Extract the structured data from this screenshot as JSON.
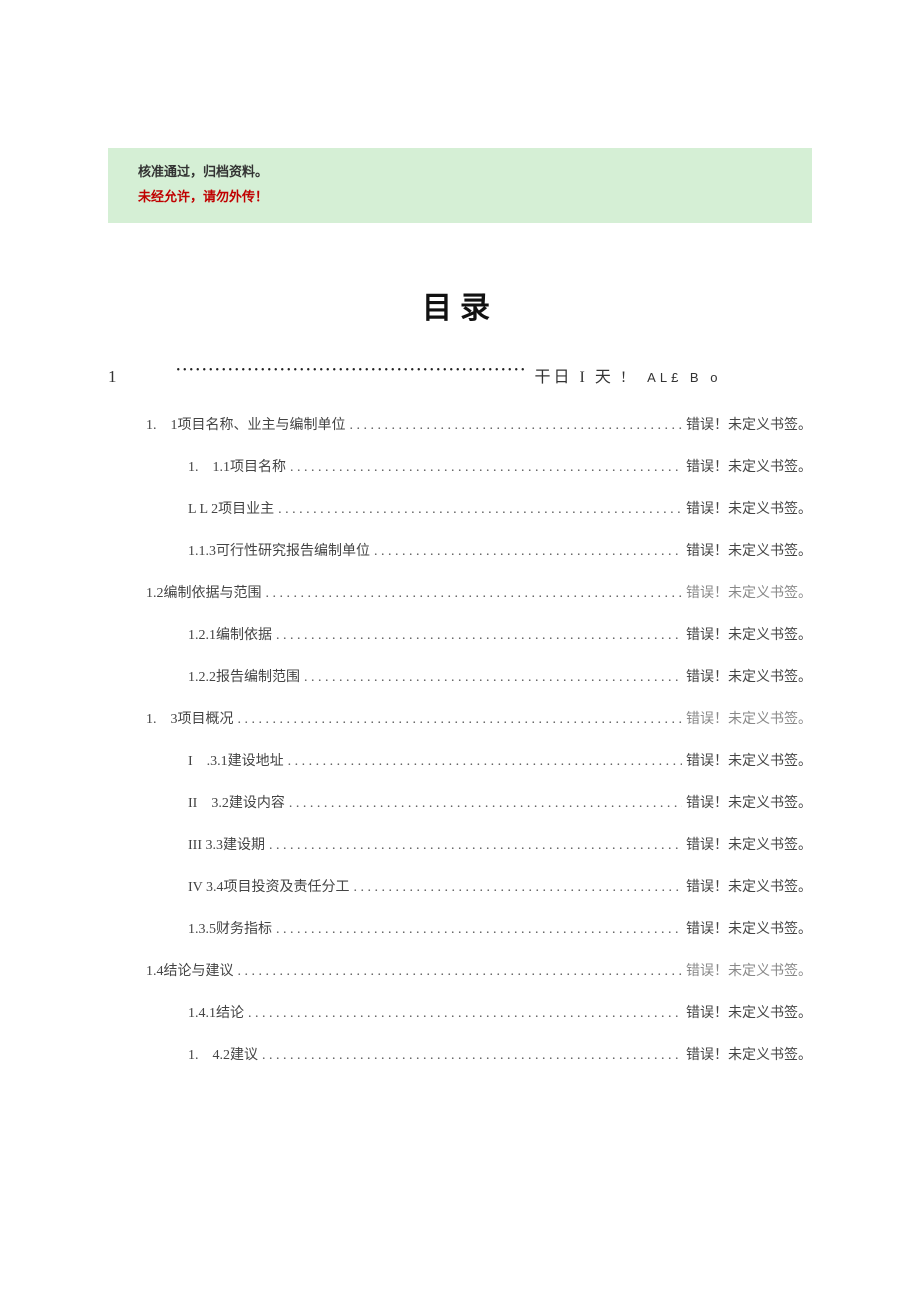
{
  "notice": {
    "line1": "核准通过，归档资料。",
    "line2": "未经允许，请勿外传！"
  },
  "title": "目录",
  "chapter": {
    "num": "1",
    "tail": "干日 I 天 !",
    "tail2": "AL£ B o"
  },
  "colors": {
    "notice_bg": "#d5efd5",
    "notice_text": "#333333",
    "notice_red": "#c00000",
    "body_text": "#444444",
    "gray_text": "#888888",
    "page_bg": "#ffffff"
  },
  "error_text": "错误！未定义书签。",
  "toc": [
    {
      "level": 1,
      "num": "1.　1",
      "label": "项目名称、业主与编制单位",
      "gray": false
    },
    {
      "level": 2,
      "num": "1.　1.1",
      "label": "项目名称",
      "gray": false
    },
    {
      "level": 2,
      "num": "L L 2",
      "label": "项目业主",
      "gray": false
    },
    {
      "level": 2,
      "num": "1.1.3",
      "label": "可行性研究报告编制单位",
      "gray": false
    },
    {
      "level": 1,
      "num": "1.2",
      "label": "编制依据与范围",
      "gray": true
    },
    {
      "level": 2,
      "num": "1.2.1",
      "label": "编制依据",
      "gray": false
    },
    {
      "level": 2,
      "num": "1.2.2",
      "label": "报告编制范围",
      "gray": false
    },
    {
      "level": 1,
      "num": "1.　3",
      "label": "项目概况",
      "gray": true
    },
    {
      "level": 2,
      "num": "I　.3.1",
      "label": "建设地址",
      "gray": false
    },
    {
      "level": 2,
      "num": "II　3.2",
      "label": "建设内容",
      "gray": false
    },
    {
      "level": 2,
      "num": "III 3.3",
      "label": "建设期",
      "gray": false
    },
    {
      "level": 2,
      "num": "IV 3.4",
      "label": "项目投资及责任分工",
      "gray": false
    },
    {
      "level": 2,
      "num": "1.3.5",
      "label": "财务指标",
      "gray": false
    },
    {
      "level": 1,
      "num": "1.4",
      "label": "结论与建议",
      "gray": true
    },
    {
      "level": 2,
      "num": "1.4.1",
      "label": "结论",
      "gray": false
    },
    {
      "level": 2,
      "num": "1.　4.2",
      "label": "建议",
      "gray": false
    }
  ]
}
